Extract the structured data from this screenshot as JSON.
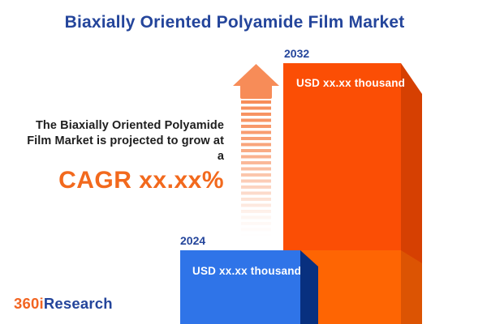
{
  "title": "Biaxially Oriented Polyamide Film Market",
  "annotation": {
    "lines": {
      "l1": "The Biaxially Oriented Polyamide",
      "l2": "Film Market is projected to grow at",
      "l3": "a"
    },
    "cagr_label": "CAGR xx.xx%"
  },
  "chart_data": {
    "type": "bar",
    "categories": [
      "2024",
      "2032"
    ],
    "values": [
      "xx.xx",
      "xx.xx"
    ],
    "value_labels": [
      "USD xx.xx thousand",
      "USD xx.xx thousand"
    ],
    "unit": "USD thousand",
    "title": "Biaxially Oriented Polyamide Film Market",
    "annotation": "The Biaxially Oriented Polyamide Film Market is projected to grow at a CAGR xx.xx%",
    "legend": "none",
    "grid": "off",
    "orientation": "vertical-3d"
  },
  "logo": {
    "part1": "360i",
    "part2": "Research"
  },
  "colors": {
    "title_blue": "#24459B",
    "text_dark": "#1E1E1E",
    "cagr_orange": "#F2691D",
    "arrow_orange": "#F78C58",
    "bar2024_front": "#2F74E8",
    "bar2024_side": "#08307F",
    "bar2032_front_upper": "#FB4E05",
    "bar2032_front_lower": "#FE6503",
    "bar2032_side_upper": "#D64002",
    "bar2032_side_lower": "#DC5403",
    "value_label_white": "#FFFFFF",
    "logo_orange": "#F26522",
    "logo_blue": "#24459B"
  }
}
